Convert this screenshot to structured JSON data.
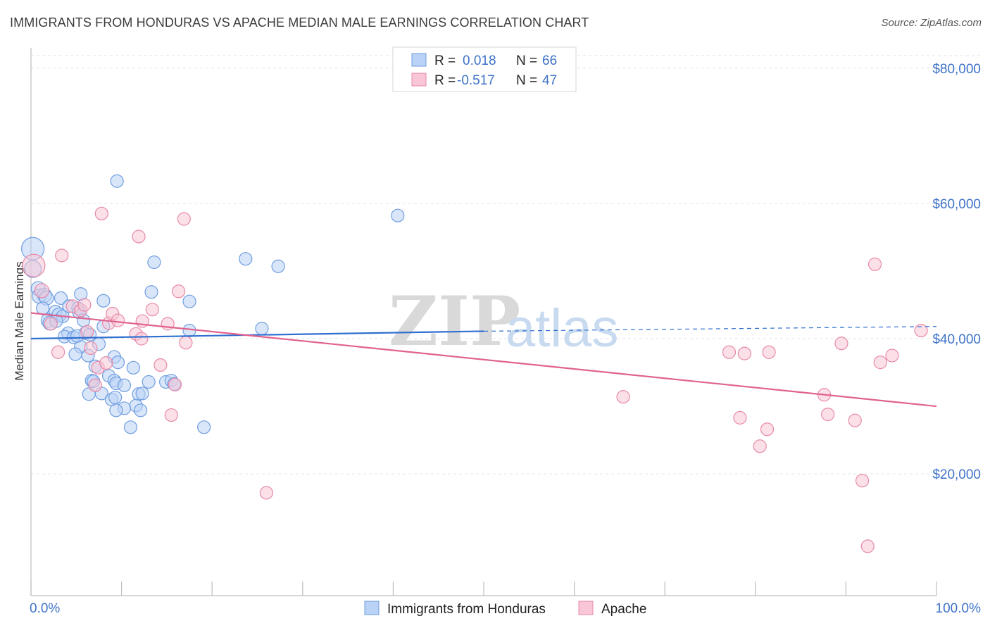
{
  "title": "IMMIGRANTS FROM HONDURAS VS APACHE MEDIAN MALE EARNINGS CORRELATION CHART",
  "source": "Source: ZipAtlas.com",
  "watermark": {
    "zip": "ZIP",
    "atlas": "atlas"
  },
  "legend_top": {
    "rows": [
      {
        "r_label": "R =",
        "r_value": "0.018",
        "n_label": "N =",
        "n_value": "66",
        "color": "#6f9ee0",
        "fill": "#b9d2f5"
      },
      {
        "r_label": "R =",
        "r_value": "-0.517",
        "n_label": "N =",
        "n_value": "47",
        "color": "#e88aa8",
        "fill": "#f8c6d6"
      }
    ]
  },
  "legend_bottom": {
    "items": [
      {
        "label": "Immigrants from Honduras",
        "color": "#6f9ee0",
        "fill": "#b9d2f5"
      },
      {
        "label": "Apache",
        "color": "#e88aa8",
        "fill": "#f8c6d6"
      }
    ]
  },
  "chart_data": {
    "type": "scatter",
    "title": "IMMIGRANTS FROM HONDURAS VS APACHE MEDIAN MALE EARNINGS CORRELATION CHART",
    "xlabel": "",
    "ylabel": "Median Male Earnings",
    "xlim": [
      0,
      100
    ],
    "ylim": [
      2000,
      83000
    ],
    "x_tick_labels": [
      "0.0%",
      "100.0%"
    ],
    "y_ticks": [
      20000,
      40000,
      60000,
      80000
    ],
    "y_tick_labels": [
      "$20,000",
      "$40,000",
      "$60,000",
      "$80,000"
    ],
    "grid": true,
    "legend_position": "top-center",
    "series": [
      {
        "name": "Immigrants from Honduras",
        "color": "#6f9ee0",
        "fill": "#b9d2f5",
        "trend": {
          "x0": 0,
          "y0": 40000,
          "x1": 50,
          "y1": 41100,
          "x_dash_end": 100,
          "y_dash_end": 41800
        },
        "points": [
          [
            0.2,
            53300,
            16
          ],
          [
            0.2,
            50300,
            12
          ],
          [
            0.8,
            47400,
            10
          ],
          [
            0.9,
            46300,
            10
          ],
          [
            1.5,
            46400,
            10
          ],
          [
            1.7,
            46000,
            10
          ],
          [
            1.3,
            44500,
            9
          ],
          [
            1.9,
            42700,
            10
          ],
          [
            2.1,
            42300,
            10
          ],
          [
            2.7,
            44000,
            9
          ],
          [
            3.1,
            43500,
            10
          ],
          [
            3.5,
            43300,
            9
          ],
          [
            3.3,
            46000,
            9
          ],
          [
            4.2,
            44800,
            9
          ],
          [
            5.2,
            44500,
            9
          ],
          [
            5.5,
            46600,
            9
          ],
          [
            5.3,
            43900,
            9
          ],
          [
            5.8,
            42700,
            9
          ],
          [
            6.0,
            40800,
            9
          ],
          [
            6.5,
            40600,
            9
          ],
          [
            4.1,
            40800,
            9
          ],
          [
            3.7,
            40300,
            9
          ],
          [
            4.7,
            40200,
            9
          ],
          [
            5.5,
            38800,
            9
          ],
          [
            4.9,
            37700,
            9
          ],
          [
            6.3,
            37500,
            9
          ],
          [
            7.5,
            39200,
            9
          ],
          [
            8.0,
            45600,
            9
          ],
          [
            8.0,
            41800,
            9
          ],
          [
            9.2,
            37300,
            9
          ],
          [
            9.6,
            36500,
            9
          ],
          [
            9.5,
            63300,
            9
          ],
          [
            11.3,
            35700,
            9
          ],
          [
            7.1,
            35900,
            9
          ],
          [
            8.6,
            34500,
            9
          ],
          [
            9.2,
            33800,
            9
          ],
          [
            9.4,
            33400,
            9
          ],
          [
            6.7,
            33800,
            9
          ],
          [
            6.9,
            33700,
            9
          ],
          [
            10.3,
            33100,
            9
          ],
          [
            13.0,
            33600,
            9
          ],
          [
            14.9,
            33600,
            9
          ],
          [
            15.5,
            33800,
            9
          ],
          [
            15.8,
            33300,
            9
          ],
          [
            6.4,
            31800,
            9
          ],
          [
            7.8,
            31900,
            9
          ],
          [
            8.9,
            31000,
            9
          ],
          [
            9.3,
            31300,
            9
          ],
          [
            11.9,
            31800,
            9
          ],
          [
            12.3,
            31900,
            9
          ],
          [
            11.6,
            30100,
            9
          ],
          [
            10.3,
            29700,
            9
          ],
          [
            12.1,
            29400,
            9
          ],
          [
            9.4,
            29400,
            9
          ],
          [
            11.0,
            26900,
            9
          ],
          [
            19.1,
            26900,
            9
          ],
          [
            13.6,
            51300,
            9
          ],
          [
            13.3,
            46900,
            9
          ],
          [
            17.5,
            45500,
            9
          ],
          [
            17.5,
            41200,
            9
          ],
          [
            23.7,
            51800,
            9
          ],
          [
            25.5,
            41500,
            9
          ],
          [
            27.3,
            50700,
            9
          ],
          [
            40.5,
            58200,
            9
          ],
          [
            2.8,
            42600,
            9
          ],
          [
            5.1,
            40400,
            9
          ]
        ]
      },
      {
        "name": "Apache",
        "color": "#e88aa8",
        "fill": "#f8c6d6",
        "trend": {
          "x0": 0,
          "y0": 43800,
          "x1": 100,
          "y1": 30000
        },
        "points": [
          [
            0.3,
            50800,
            16
          ],
          [
            1.2,
            47100,
            10
          ],
          [
            2.2,
            42200,
            9
          ],
          [
            3.4,
            52300,
            9
          ],
          [
            3.0,
            38000,
            9
          ],
          [
            4.6,
            44800,
            9
          ],
          [
            5.5,
            44200,
            9
          ],
          [
            5.9,
            45000,
            9
          ],
          [
            6.2,
            41000,
            9
          ],
          [
            6.6,
            38600,
            9
          ],
          [
            7.1,
            33100,
            9
          ],
          [
            7.4,
            35700,
            9
          ],
          [
            8.3,
            36400,
            9
          ],
          [
            8.6,
            42300,
            9
          ],
          [
            9.0,
            43700,
            9
          ],
          [
            9.6,
            42700,
            9
          ],
          [
            11.6,
            40700,
            9
          ],
          [
            12.2,
            40000,
            9
          ],
          [
            12.3,
            42600,
            9
          ],
          [
            11.9,
            55100,
            9
          ],
          [
            13.4,
            44300,
            9
          ],
          [
            14.3,
            36100,
            9
          ],
          [
            15.1,
            42200,
            9
          ],
          [
            15.5,
            28700,
            9
          ],
          [
            16.3,
            47000,
            9
          ],
          [
            16.9,
            57700,
            9
          ],
          [
            17.1,
            39400,
            9
          ],
          [
            15.9,
            33200,
            9
          ],
          [
            7.8,
            58500,
            9
          ],
          [
            26.0,
            17200,
            9
          ],
          [
            65.4,
            31400,
            9
          ],
          [
            77.1,
            38000,
            9
          ],
          [
            78.8,
            37800,
            9
          ],
          [
            81.5,
            38000,
            9
          ],
          [
            78.3,
            28300,
            9
          ],
          [
            80.5,
            24100,
            9
          ],
          [
            81.3,
            26600,
            9
          ],
          [
            87.6,
            31700,
            9
          ],
          [
            88.0,
            28800,
            9
          ],
          [
            89.5,
            39300,
            9
          ],
          [
            91.0,
            27900,
            9
          ],
          [
            93.8,
            36500,
            9
          ],
          [
            95.1,
            37500,
            9
          ],
          [
            92.4,
            9300,
            9
          ],
          [
            91.8,
            19000,
            9
          ],
          [
            93.2,
            51000,
            9
          ],
          [
            98.3,
            41200,
            9
          ]
        ]
      }
    ]
  }
}
